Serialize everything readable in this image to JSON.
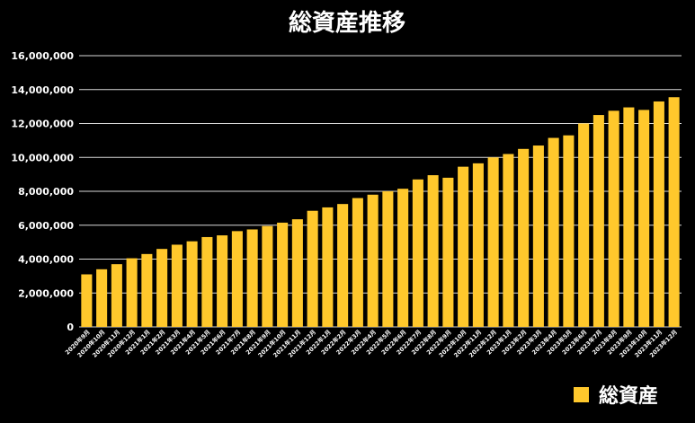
{
  "chart_data": {
    "type": "bar",
    "title": "総資産推移",
    "xlabel": "",
    "ylabel": "",
    "ylim": [
      0,
      16000000
    ],
    "yticks": [
      "0",
      "2,000,000",
      "4,000,000",
      "6,000,000",
      "8,000,000",
      "10,000,000",
      "12,000,000",
      "14,000,000",
      "16,000,000"
    ],
    "grid": true,
    "legend_position": "bottom-right",
    "categories": [
      "2020年9月",
      "2020年10月",
      "2020年11月",
      "2020年12月",
      "2021年1月",
      "2021年2月",
      "2021年3月",
      "2021年4月",
      "2021年5月",
      "2021年6月",
      "2021年7月",
      "2021年8月",
      "2021年9月",
      "2021年10月",
      "2021年11月",
      "2021年12月",
      "2022年1月",
      "2022年2月",
      "2022年3月",
      "2022年4月",
      "2022年5月",
      "2022年6月",
      "2022年7月",
      "2022年8月",
      "2022年9月",
      "2022年10月",
      "2022年11月",
      "2022年12月",
      "2023年1月",
      "2023年2月",
      "2023年3月",
      "2023年4月",
      "2023年5月",
      "2023年6月",
      "2023年7月",
      "2023年8月",
      "2023年9月",
      "2023年10月",
      "2023年11月",
      "2023年12月"
    ],
    "series": [
      {
        "name": "総資産",
        "color": "#FFC82C",
        "values": [
          3100000,
          3400000,
          3700000,
          4050000,
          4300000,
          4600000,
          4850000,
          5050000,
          5300000,
          5400000,
          5650000,
          5750000,
          5950000,
          6150000,
          6350000,
          6850000,
          7050000,
          7250000,
          7600000,
          7800000,
          8000000,
          8150000,
          8700000,
          8950000,
          8800000,
          9450000,
          9650000,
          10000000,
          10200000,
          10500000,
          10700000,
          11150000,
          11300000,
          12000000,
          12500000,
          12750000,
          12950000,
          12800000,
          13300000,
          13550000
        ]
      }
    ]
  }
}
